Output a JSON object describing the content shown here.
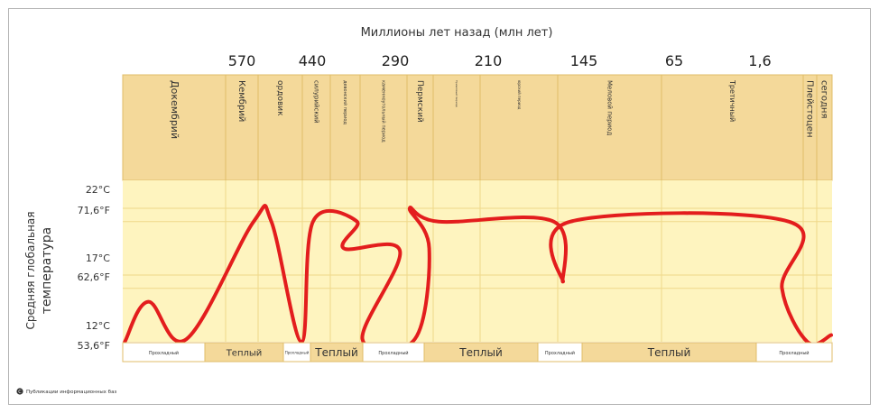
{
  "chart_data": {
    "type": "line",
    "title": "Миллионы лет назад (млн лет)",
    "ylabel_line1": "Средняя глобальная",
    "ylabel_line2": "температура",
    "y_ticks": [
      {
        "celsius": "22°C",
        "fahrenheit": "71,6°F"
      },
      {
        "celsius": "17°C",
        "fahrenheit": "62,6°F"
      },
      {
        "celsius": "12°C",
        "fahrenheit": "53,6°F"
      }
    ],
    "time_labels": [
      "570",
      "440",
      "290",
      "210",
      "145",
      "65",
      "1,6"
    ],
    "periods": [
      "Докембрий",
      "Кембрий",
      "ордовик",
      "силурийский",
      "девонский период",
      "каменноугольный период",
      "Пермский",
      "Триасовый период",
      "юрский период",
      "Меловой период",
      "Третичный",
      "Плейстоцен",
      "сегодня"
    ],
    "climate_bands": [
      "Прохладный",
      "Теплый",
      "Прохладный",
      "Теплый",
      "Прохладный",
      "Теплый",
      "Прохладный",
      "Теплый",
      "Прохладный"
    ],
    "series": [
      {
        "color": "#e31d1d",
        "points": [
          {
            "period": "Докембрий",
            "value_c": 12.0
          },
          {
            "period": "Докембрий",
            "value_c": 15.0
          },
          {
            "period": "Докембрий",
            "value_c": 12.2
          },
          {
            "period": "Кембрий",
            "value_c": 21.0
          },
          {
            "period": "ордовик",
            "value_c": 21.0
          },
          {
            "period": "ордовик",
            "value_c": 12.0
          },
          {
            "period": "силурийский",
            "value_c": 21.0
          },
          {
            "period": "девонский период",
            "value_c": 21.0
          },
          {
            "period": "девонский период",
            "value_c": 19.0
          },
          {
            "period": "каменноугольный период",
            "value_c": 18.8
          },
          {
            "period": "каменноугольный период",
            "value_c": 12.2
          },
          {
            "period": "Пермский",
            "value_c": 12.2
          },
          {
            "period": "Пермский",
            "value_c": 19.0
          },
          {
            "period": "Пермский",
            "value_c": 22.0
          },
          {
            "period": "Триасовый период",
            "value_c": 21.0
          },
          {
            "period": "юрский период",
            "value_c": 21.0
          },
          {
            "period": "Меловой период",
            "value_c": 16.5
          },
          {
            "period": "Меловой период",
            "value_c": 21.0
          },
          {
            "period": "Третичный",
            "value_c": 21.0
          },
          {
            "period": "Третичный",
            "value_c": 16.0
          },
          {
            "period": "Плейстоцен",
            "value_c": 12.0
          },
          {
            "period": "сегодня",
            "value_c": 12.5
          }
        ]
      }
    ],
    "grid": true
  },
  "colors": {
    "header_fill": "#f4d99a",
    "plot_fill": "#fef4bf",
    "band_fill": "#f4d99a",
    "line": "#e31d1d"
  },
  "credit": {
    "icon": "copyright-icon",
    "text": "Публикации информационных баз"
  }
}
